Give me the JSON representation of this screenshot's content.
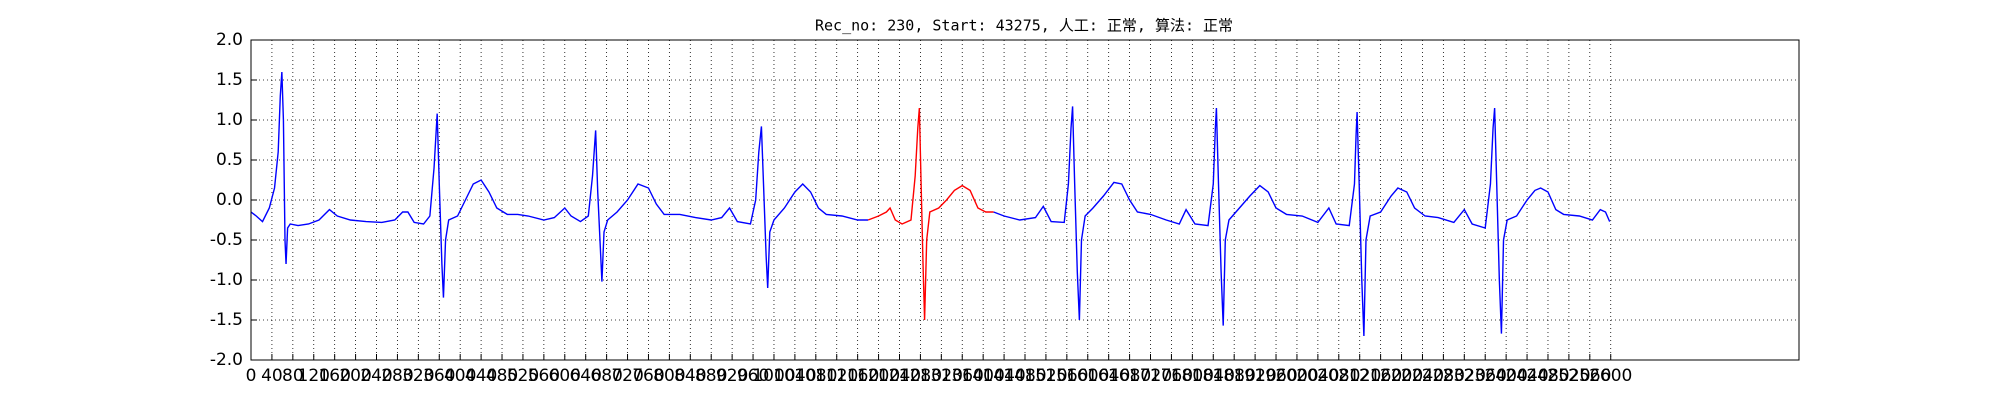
{
  "chart_data": {
    "type": "line",
    "title": "Rec_no: 230, Start: 43275, 人工: 正常, 算法: 正常",
    "grid": true,
    "xlim": [
      0,
      2960
    ],
    "ylim": [
      -2,
      2
    ],
    "xticks": [
      0,
      40,
      80,
      120,
      160,
      200,
      240,
      280,
      320,
      360,
      400,
      440,
      480,
      520,
      560,
      600,
      640,
      680,
      720,
      760,
      800,
      840,
      880,
      920,
      960,
      1000,
      1040,
      1080,
      1120,
      1160,
      1200,
      1240,
      1280,
      1320,
      1360,
      1400,
      1440,
      1480,
      1520,
      1560,
      1600,
      1640,
      1680,
      1720,
      1760,
      1800,
      1840,
      1880,
      1920,
      1960,
      2000,
      2040,
      2080,
      2120,
      2160,
      2200,
      2240,
      2280,
      2320,
      2360,
      2400,
      2440,
      2480,
      2520,
      2560,
      2600
    ],
    "yticks": [
      {
        "value": -2,
        "label": "-2.0"
      },
      -1.5,
      {
        "value": -1,
        "label": "-1.0"
      },
      -0.5,
      {
        "value": 0,
        "label": "0.0"
      },
      0.5,
      {
        "value": 1,
        "label": "1.0"
      },
      1.5,
      {
        "value": 2,
        "label": "2.0"
      }
    ],
    "series": [
      {
        "color": "#0000ff",
        "x": [
          0,
          10,
          22,
          35,
          45,
          52,
          56,
          59,
          62,
          65,
          67,
          70,
          75,
          90,
          110,
          130,
          150,
          165,
          190,
          220,
          250,
          275,
          290,
          300,
          312,
          330,
          342,
          350,
          356,
          360,
          365,
          368,
          372,
          378,
          395,
          410,
          425,
          440,
          455,
          470,
          490,
          510,
          530,
          560,
          580,
          600,
          612,
          630,
          645,
          653,
          659,
          663,
          668,
          671,
          675,
          682,
          700,
          720,
          740,
          760,
          775,
          790,
          820,
          850,
          880,
          900,
          915,
          930,
          955,
          965,
          971,
          976,
          980,
          985,
          988,
          992,
          1000,
          1020,
          1040,
          1055,
          1070,
          1085,
          1100,
          1130,
          1160,
          1180
        ],
        "values": [
          -0.15,
          -0.2,
          -0.27,
          -0.1,
          0.15,
          0.6,
          1.3,
          1.6,
          1.0,
          -0.5,
          -0.8,
          -0.35,
          -0.3,
          -0.32,
          -0.3,
          -0.25,
          -0.12,
          -0.2,
          -0.25,
          -0.27,
          -0.28,
          -0.25,
          -0.15,
          -0.15,
          -0.28,
          -0.3,
          -0.2,
          0.4,
          1.08,
          0.2,
          -0.8,
          -1.22,
          -0.5,
          -0.25,
          -0.2,
          0.0,
          0.2,
          0.25,
          0.1,
          -0.1,
          -0.18,
          -0.18,
          -0.2,
          -0.25,
          -0.22,
          -0.1,
          -0.2,
          -0.27,
          -0.2,
          0.3,
          0.87,
          0.1,
          -0.6,
          -1.02,
          -0.4,
          -0.25,
          -0.15,
          0.0,
          0.2,
          0.15,
          -0.05,
          -0.18,
          -0.18,
          -0.22,
          -0.25,
          -0.22,
          -0.1,
          -0.27,
          -0.3,
          0.0,
          0.6,
          0.92,
          0.2,
          -0.7,
          -1.1,
          -0.4,
          -0.25,
          -0.1,
          0.1,
          0.2,
          0.1,
          -0.1,
          -0.18,
          -0.2,
          -0.25,
          -0.25
        ]
      },
      {
        "color": "#ff0000",
        "x": [
          1180,
          1200,
          1215,
          1222,
          1232,
          1245,
          1262,
          1270,
          1275,
          1278,
          1281,
          1285,
          1288,
          1292,
          1298,
          1315,
          1330,
          1345,
          1360,
          1375,
          1390,
          1405,
          1420
        ],
        "values": [
          -0.25,
          -0.2,
          -0.15,
          -0.1,
          -0.25,
          -0.3,
          -0.25,
          0.3,
          0.9,
          1.15,
          0.3,
          -0.8,
          -1.5,
          -0.5,
          -0.15,
          -0.1,
          0.0,
          0.12,
          0.18,
          0.12,
          -0.1,
          -0.15,
          -0.15
        ]
      },
      {
        "color": "#0000ff",
        "x": [
          1420,
          1440,
          1470,
          1500,
          1515,
          1530,
          1555,
          1563,
          1568,
          1571,
          1575,
          1580,
          1584,
          1588,
          1595,
          1610,
          1630,
          1650,
          1665,
          1680,
          1695,
          1720,
          1750,
          1775,
          1788,
          1805,
          1830,
          1840,
          1844,
          1846,
          1850,
          1855,
          1859,
          1863,
          1870,
          1890,
          1910,
          1929,
          1945,
          1960,
          1980,
          2010,
          2040,
          2061,
          2075,
          2100,
          2110,
          2113,
          2115,
          2119,
          2124,
          2128,
          2132,
          2140,
          2160,
          2180,
          2193,
          2210,
          2225,
          2245,
          2270,
          2300,
          2320,
          2335,
          2360,
          2370,
          2375,
          2378,
          2382,
          2387,
          2391,
          2395,
          2402,
          2420,
          2440,
          2455,
          2466,
          2480,
          2495,
          2510,
          2540,
          2565,
          2580,
          2590,
          2598
        ],
        "values": [
          -0.15,
          -0.2,
          -0.25,
          -0.22,
          -0.08,
          -0.27,
          -0.28,
          0.2,
          0.9,
          1.17,
          0.2,
          -0.9,
          -1.5,
          -0.5,
          -0.2,
          -0.1,
          0.05,
          0.22,
          0.2,
          0.0,
          -0.15,
          -0.18,
          -0.25,
          -0.3,
          -0.12,
          -0.3,
          -0.32,
          0.2,
          0.9,
          1.15,
          0.2,
          -0.9,
          -1.57,
          -0.5,
          -0.25,
          -0.1,
          0.05,
          0.18,
          0.1,
          -0.1,
          -0.18,
          -0.2,
          -0.28,
          -0.1,
          -0.3,
          -0.32,
          0.2,
          0.8,
          1.1,
          0.2,
          -1.0,
          -1.7,
          -0.5,
          -0.2,
          -0.15,
          0.05,
          0.15,
          0.1,
          -0.1,
          -0.2,
          -0.22,
          -0.28,
          -0.12,
          -0.3,
          -0.35,
          0.2,
          0.9,
          1.15,
          0.2,
          -1.0,
          -1.67,
          -0.5,
          -0.25,
          -0.2,
          0.0,
          0.12,
          0.15,
          0.1,
          -0.12,
          -0.18,
          -0.2,
          -0.25,
          -0.12,
          -0.15,
          -0.27
        ]
      }
    ]
  }
}
